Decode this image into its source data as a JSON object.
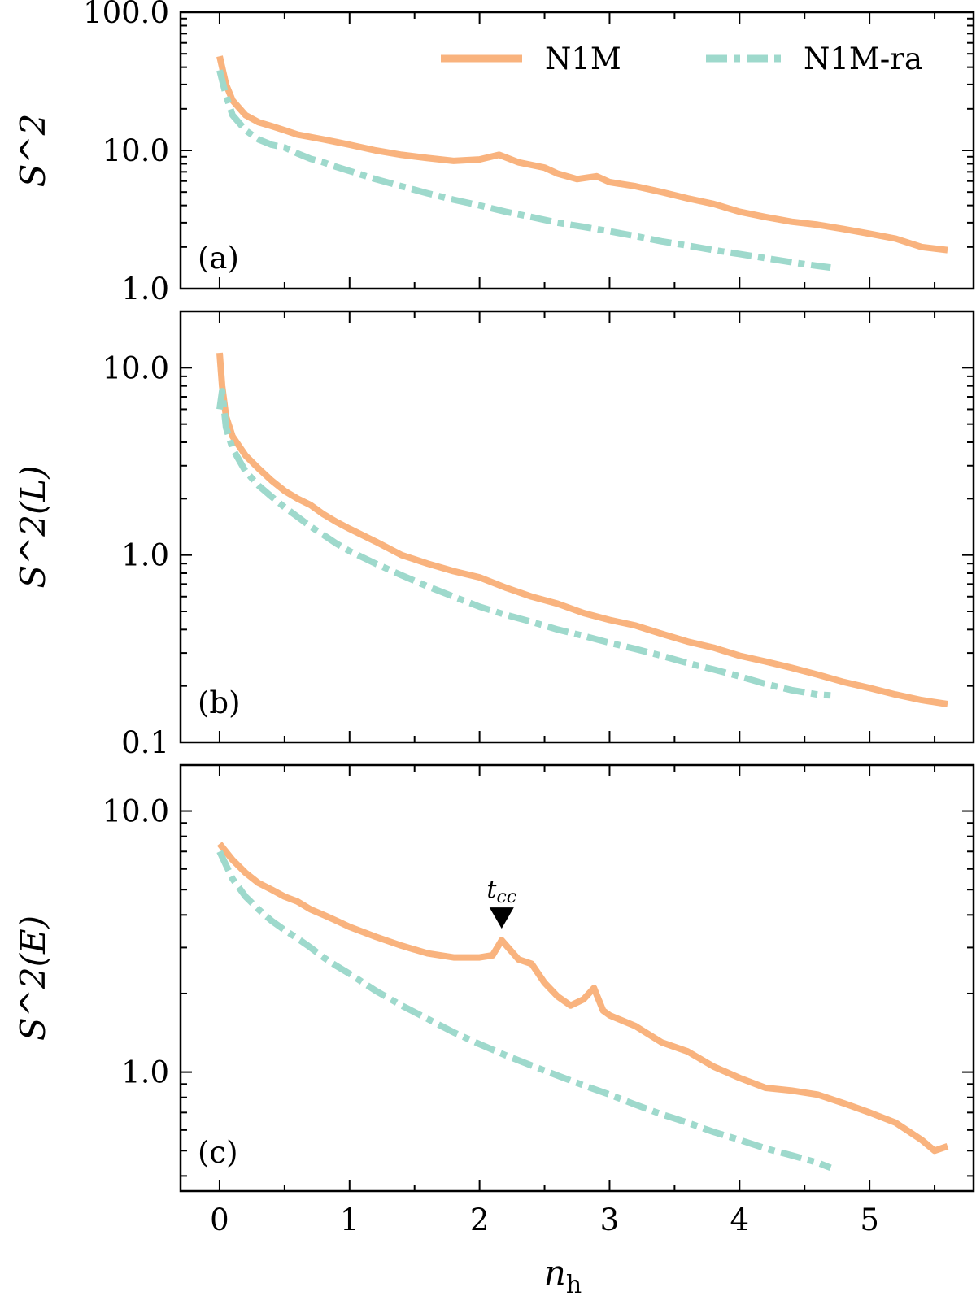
{
  "colors": {
    "n1m": "#f9b37e",
    "n1m_ra": "#9ed9cc",
    "axis": "#000000"
  },
  "xaxis": {
    "label_main": "n",
    "label_sub": "h",
    "range": [
      -0.3,
      5.8
    ],
    "ticks": [
      0,
      1,
      2,
      3,
      4,
      5
    ],
    "tick_labels": [
      "0",
      "1",
      "2",
      "3",
      "4",
      "5"
    ]
  },
  "legend": {
    "entries": [
      {
        "key": "n1m",
        "label": "N1M"
      },
      {
        "key": "n1m_ra",
        "label": "N1M-ra"
      }
    ]
  },
  "chart_data": [
    {
      "type": "line",
      "panel": "(a)",
      "ylabel": "S^2",
      "yscale": "log",
      "ylim": [
        1.0,
        100.0
      ],
      "yticks": [
        1.0,
        10.0,
        100.0
      ],
      "ytick_labels": [
        "1.0",
        "10.0",
        "100.0"
      ],
      "series": [
        {
          "key": "n1m",
          "name": "N1M",
          "x": [
            0,
            0.05,
            0.1,
            0.2,
            0.3,
            0.4,
            0.5,
            0.6,
            0.7,
            0.8,
            0.9,
            1.0,
            1.2,
            1.4,
            1.6,
            1.8,
            2.0,
            2.15,
            2.3,
            2.5,
            2.6,
            2.75,
            2.9,
            3.0,
            3.2,
            3.4,
            3.6,
            3.8,
            4.0,
            4.2,
            4.4,
            4.6,
            4.8,
            5.0,
            5.2,
            5.4,
            5.6
          ],
          "y": [
            48,
            30,
            23,
            18,
            16,
            15,
            14,
            13,
            12.5,
            12,
            11.5,
            11,
            10,
            9.3,
            8.8,
            8.4,
            8.6,
            9.3,
            8.2,
            7.5,
            6.8,
            6.2,
            6.5,
            5.9,
            5.5,
            5.0,
            4.5,
            4.1,
            3.6,
            3.3,
            3.05,
            2.9,
            2.7,
            2.5,
            2.3,
            2.0,
            1.9
          ]
        },
        {
          "key": "n1m_ra",
          "name": "N1M-ra",
          "x": [
            0,
            0.05,
            0.1,
            0.2,
            0.3,
            0.4,
            0.5,
            0.6,
            0.7,
            0.8,
            0.9,
            1.0,
            1.2,
            1.4,
            1.6,
            1.8,
            2.0,
            2.2,
            2.4,
            2.6,
            2.8,
            3.0,
            3.2,
            3.4,
            3.6,
            3.8,
            4.0,
            4.2,
            4.4,
            4.6,
            4.7
          ],
          "y": [
            38,
            25,
            18,
            14,
            12,
            11,
            10.5,
            9.5,
            8.7,
            8.2,
            7.6,
            7.1,
            6.2,
            5.5,
            4.9,
            4.4,
            4.0,
            3.6,
            3.3,
            3.0,
            2.8,
            2.6,
            2.4,
            2.2,
            2.05,
            1.9,
            1.78,
            1.66,
            1.55,
            1.46,
            1.42
          ]
        }
      ]
    },
    {
      "type": "line",
      "panel": "(b)",
      "ylabel": "S^2(L)",
      "yscale": "log",
      "ylim": [
        0.1,
        20.0
      ],
      "yticks": [
        0.1,
        1.0,
        10.0
      ],
      "ytick_labels": [
        "0.1",
        "1.0",
        "10.0"
      ],
      "series": [
        {
          "key": "n1m",
          "name": "N1M",
          "x": [
            0,
            0.02,
            0.05,
            0.1,
            0.2,
            0.3,
            0.4,
            0.5,
            0.6,
            0.7,
            0.8,
            0.9,
            1.0,
            1.2,
            1.4,
            1.6,
            1.8,
            2.0,
            2.2,
            2.4,
            2.6,
            2.8,
            3.0,
            3.2,
            3.4,
            3.6,
            3.8,
            4.0,
            4.2,
            4.4,
            4.6,
            4.8,
            5.0,
            5.2,
            5.4,
            5.6
          ],
          "y": [
            12,
            8,
            5.5,
            4.3,
            3.4,
            2.9,
            2.5,
            2.2,
            2.0,
            1.85,
            1.65,
            1.5,
            1.38,
            1.18,
            1.0,
            0.9,
            0.82,
            0.76,
            0.67,
            0.6,
            0.55,
            0.49,
            0.45,
            0.42,
            0.38,
            0.345,
            0.32,
            0.29,
            0.27,
            0.25,
            0.23,
            0.21,
            0.195,
            0.18,
            0.168,
            0.16
          ]
        },
        {
          "key": "n1m_ra",
          "name": "N1M-ra",
          "x": [
            0,
            0.02,
            0.05,
            0.1,
            0.2,
            0.3,
            0.4,
            0.5,
            0.6,
            0.7,
            0.8,
            0.9,
            1.0,
            1.2,
            1.4,
            1.6,
            1.8,
            2.0,
            2.2,
            2.4,
            2.6,
            2.8,
            3.0,
            3.2,
            3.4,
            3.6,
            3.8,
            4.0,
            4.2,
            4.4,
            4.6,
            4.7
          ],
          "y": [
            6,
            7.5,
            4.8,
            3.7,
            2.8,
            2.35,
            2.05,
            1.8,
            1.6,
            1.42,
            1.28,
            1.15,
            1.05,
            0.9,
            0.78,
            0.68,
            0.6,
            0.53,
            0.48,
            0.44,
            0.4,
            0.37,
            0.34,
            0.315,
            0.29,
            0.265,
            0.245,
            0.225,
            0.205,
            0.19,
            0.18,
            0.178
          ]
        }
      ]
    },
    {
      "type": "line",
      "panel": "(c)",
      "ylabel": "S^2(E)",
      "yscale": "log",
      "ylim": [
        0.35,
        15.0
      ],
      "yticks": [
        1.0,
        10.0
      ],
      "ytick_labels": [
        "1.0",
        "10.0"
      ],
      "annotation": {
        "text_main": "t",
        "text_sub": "cc",
        "x": 2.17,
        "y": 3.3
      },
      "series": [
        {
          "key": "n1m",
          "name": "N1M",
          "x": [
            0,
            0.1,
            0.2,
            0.3,
            0.4,
            0.5,
            0.6,
            0.7,
            0.8,
            0.9,
            1.0,
            1.2,
            1.4,
            1.6,
            1.8,
            2.0,
            2.1,
            2.17,
            2.3,
            2.4,
            2.5,
            2.6,
            2.7,
            2.8,
            2.88,
            2.95,
            3.0,
            3.2,
            3.4,
            3.6,
            3.8,
            4.0,
            4.2,
            4.4,
            4.6,
            4.8,
            5.0,
            5.2,
            5.4,
            5.5,
            5.6
          ],
          "y": [
            7.5,
            6.5,
            5.8,
            5.3,
            5.0,
            4.7,
            4.5,
            4.2,
            4.0,
            3.8,
            3.6,
            3.3,
            3.05,
            2.85,
            2.75,
            2.75,
            2.8,
            3.2,
            2.7,
            2.6,
            2.2,
            1.95,
            1.8,
            1.9,
            2.1,
            1.72,
            1.65,
            1.5,
            1.3,
            1.2,
            1.05,
            0.95,
            0.87,
            0.85,
            0.82,
            0.76,
            0.7,
            0.64,
            0.55,
            0.5,
            0.52
          ]
        },
        {
          "key": "n1m_ra",
          "name": "N1M-ra",
          "x": [
            0,
            0.1,
            0.2,
            0.3,
            0.4,
            0.5,
            0.6,
            0.7,
            0.8,
            0.9,
            1.0,
            1.2,
            1.4,
            1.6,
            1.8,
            2.0,
            2.2,
            2.4,
            2.6,
            2.8,
            3.0,
            3.2,
            3.4,
            3.6,
            3.8,
            4.0,
            4.2,
            4.4,
            4.6,
            4.7
          ],
          "y": [
            7.0,
            5.5,
            4.7,
            4.2,
            3.8,
            3.5,
            3.25,
            3.0,
            2.75,
            2.55,
            2.38,
            2.05,
            1.8,
            1.6,
            1.42,
            1.28,
            1.16,
            1.06,
            0.97,
            0.89,
            0.82,
            0.75,
            0.69,
            0.64,
            0.59,
            0.55,
            0.51,
            0.48,
            0.45,
            0.43
          ]
        }
      ]
    }
  ]
}
